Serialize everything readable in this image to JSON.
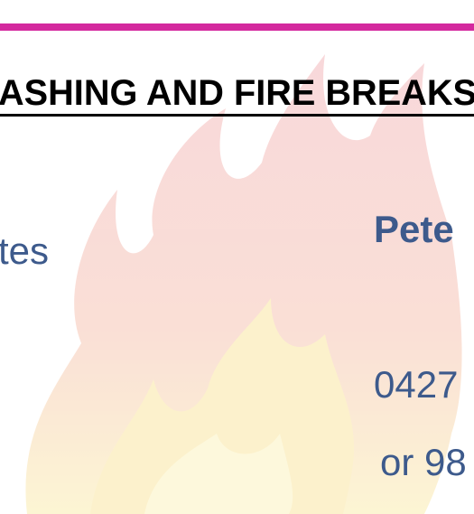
{
  "header": {
    "title": "ASHING AND FIRE BREAKS"
  },
  "body": {
    "left_text": "tes",
    "name": "Pete",
    "phone": "0427",
    "alt_phone": "or 98"
  }
}
